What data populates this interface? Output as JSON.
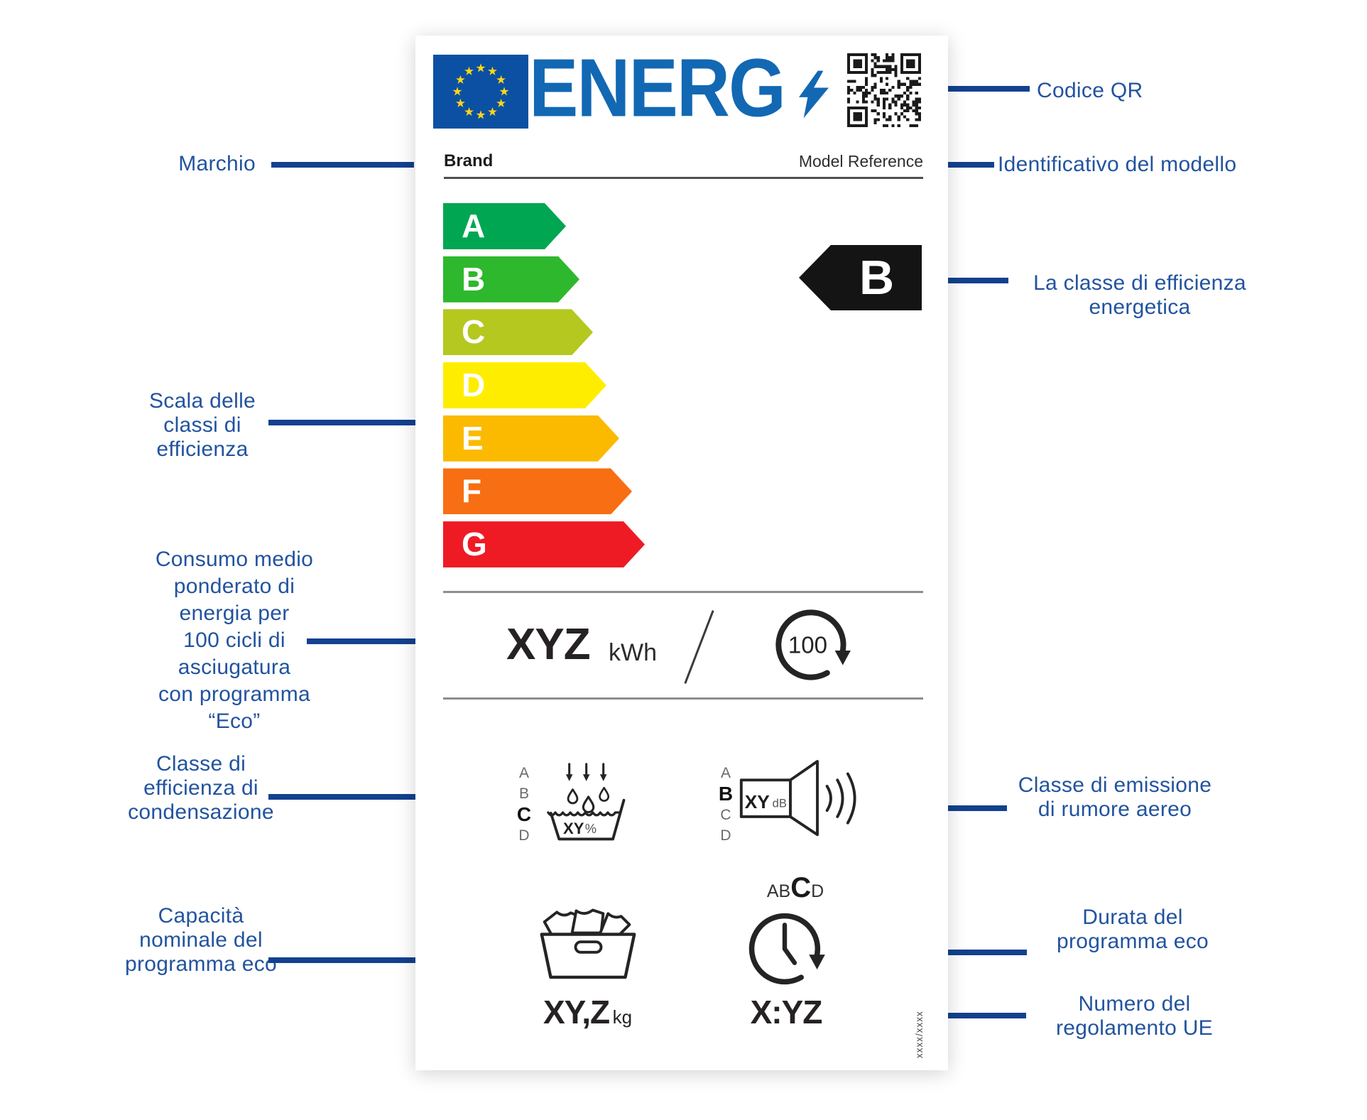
{
  "label": {
    "logo": "ENERG",
    "brand": "Brand",
    "model": "Model Reference",
    "regulation_number": "xxxx/xxxx",
    "scale": {
      "classes": [
        {
          "letter": "A",
          "color": "#00a651"
        },
        {
          "letter": "B",
          "color": "#2eb82d"
        },
        {
          "letter": "C",
          "color": "#b4c81f"
        },
        {
          "letter": "D",
          "color": "#ffed00"
        },
        {
          "letter": "E",
          "color": "#fbba00"
        },
        {
          "letter": "F",
          "color": "#f86e12"
        },
        {
          "letter": "G",
          "color": "#ee1b24"
        }
      ],
      "indicator": "B"
    },
    "energy": {
      "value": "XYZ",
      "unit": "kWh",
      "cycles": "100"
    },
    "condensation": {
      "letters": [
        "A",
        "B",
        "C",
        "D"
      ],
      "active": "C",
      "value": "XY",
      "unit": "%"
    },
    "noise": {
      "letters": [
        "A",
        "B",
        "C",
        "D"
      ],
      "active": "B",
      "value": "XY",
      "unit": "dB"
    },
    "duration_class": {
      "prefix": "AB",
      "active": "C",
      "suffix": "D"
    },
    "capacity": {
      "value": "XY,Z",
      "unit": "kg"
    },
    "duration": {
      "value": "X:YZ"
    }
  },
  "annotations": {
    "marchio": "Marchio",
    "scala": "Scala delle\nclassi di\nefficienza",
    "consumo": "Consumo medio\nponderato di\nenergia per\n100 cicli di\nasciugatura\ncon programma\n“Eco”",
    "condensazione": "Classe di\nefficienza di\ncondensazione",
    "capacita": "Capacità\nnominale del\nprogramma eco",
    "codice_qr": "Codice QR",
    "modello": "Identificativo del modello",
    "classe_energetica": "La classe di efficienza\nenergetica",
    "rumore": "Classe di emissione\ndi rumore aereo",
    "durata": "Durata del\nprogramma eco",
    "regolamento": "Numero del\nregolamento UE"
  },
  "colors": {
    "annotation_text": "#22539f",
    "connector_line": "#12418f",
    "logo_blue": "#1268b3",
    "flag_blue": "#0b50a2",
    "star_yellow": "#ffd617",
    "indicator_black": "#141414"
  }
}
